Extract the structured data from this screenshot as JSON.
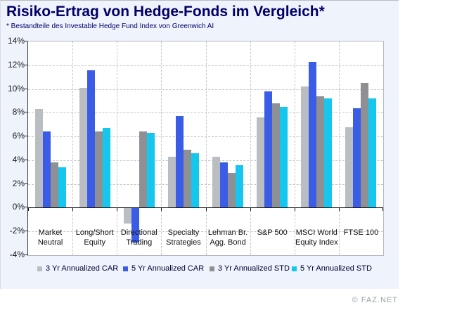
{
  "header": {
    "title": "Risiko-Ertrag von Hedge-Fonds im Vergleich*",
    "subtitle": "* Bestandteile des Investable Hedge Fund Index von Greenwich AI"
  },
  "footer": {
    "credit": "© FAZ.NET"
  },
  "colors": {
    "panel_bg": "#eff3fc",
    "plot_bg": "#ffffff",
    "grid": "#c4c8cc",
    "zero_axis": "#101010",
    "title_text": "#000066"
  },
  "chart_data": {
    "type": "bar",
    "title": "Risiko-Ertrag von Hedge-Fonds im Vergleich*",
    "subtitle": "* Bestandteile des Investable Hedge Fund Index von Greenwich AI",
    "categories": [
      "Market\nNeutral",
      "Long/Short\nEquity",
      "Directional\nTrading",
      "Specialty\nStrategies",
      "Lehman Br.\nAgg. Bond",
      "S&P 500",
      "MSCI World\nEquity Index",
      "FTSE 100"
    ],
    "series": [
      {
        "name": "3 Yr Annualized CAR",
        "color": "#babdc2",
        "values": [
          8.3,
          10.1,
          -1.3,
          4.3,
          4.3,
          7.6,
          10.2,
          6.8
        ]
      },
      {
        "name": "5 Yr Annualized CAR",
        "color": "#3a5ce6",
        "values": [
          6.4,
          11.6,
          -2.9,
          7.7,
          3.8,
          9.8,
          12.3,
          8.4
        ]
      },
      {
        "name": "3 Yr Annualized STD",
        "color": "#8e9094",
        "values": [
          3.8,
          6.4,
          6.4,
          4.9,
          2.9,
          8.8,
          9.4,
          10.5
        ]
      },
      {
        "name": "5 Yr Annualized STD",
        "color": "#15c6ef",
        "values": [
          3.4,
          6.7,
          6.3,
          4.6,
          3.6,
          8.5,
          9.2,
          9.2
        ]
      }
    ],
    "ylim": [
      -4,
      14
    ],
    "ytick_step": 2,
    "ytick_suffix": "%",
    "grid": true,
    "legend_position": "bottom"
  }
}
